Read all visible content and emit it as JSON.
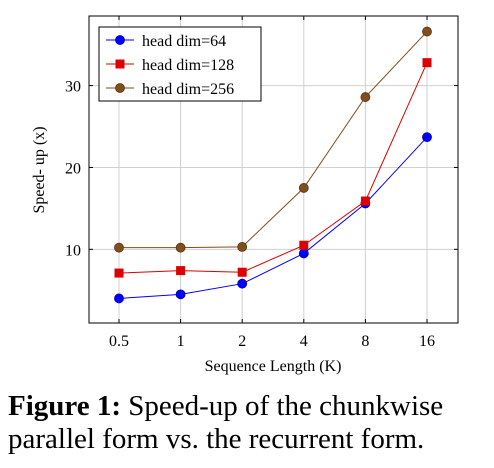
{
  "chart_data": {
    "type": "line",
    "categories": [
      "0.5",
      "1",
      "2",
      "4",
      "8",
      "16"
    ],
    "series": [
      {
        "name": "head dim=64",
        "color": "#0000ff",
        "marker": "circle",
        "values": [
          4.0,
          4.5,
          5.8,
          9.5,
          15.6,
          23.7
        ]
      },
      {
        "name": "head dim=128",
        "color": "#dd0000",
        "marker": "square",
        "values": [
          7.1,
          7.4,
          7.2,
          10.5,
          15.9,
          32.8
        ]
      },
      {
        "name": "head dim=256",
        "color": "#7f4f1e",
        "marker": "circle",
        "values": [
          10.2,
          10.2,
          10.3,
          17.5,
          28.6,
          36.6
        ]
      }
    ],
    "xlabel": "Sequence Length (K)",
    "ylabel": "Speed- up (x)",
    "yticks": [
      10,
      20,
      30
    ],
    "ylim": [
      1,
      38.5
    ],
    "grid": true,
    "legend": "top-left"
  },
  "caption": {
    "label": "Figure 1:",
    "text": " Speed-up of the chunkwise parallel form vs. the recurrent form."
  }
}
